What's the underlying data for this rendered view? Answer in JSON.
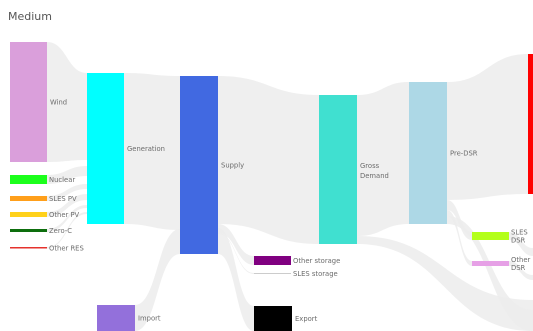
{
  "title": "Medium",
  "chart_data": {
    "type": "sankey",
    "title": "Medium",
    "nodes": [
      {
        "id": "wind",
        "label": "Wind",
        "color": "#da9fdb"
      },
      {
        "id": "nuclear",
        "label": "Nuclear",
        "color": "#1cff1c"
      },
      {
        "id": "sles_pv",
        "label": "SLES PV",
        "color": "#ff9f1a"
      },
      {
        "id": "other_pv",
        "label": "Other PV",
        "color": "#ffd11a"
      },
      {
        "id": "zero_c",
        "label": "Zero-C",
        "color": "#0d6e0d"
      },
      {
        "id": "other_res",
        "label": "Other RES",
        "color": "#e5322c"
      },
      {
        "id": "generation",
        "label": "Generation",
        "color": "#00ffff"
      },
      {
        "id": "import",
        "label": "Import",
        "color": "#9370db"
      },
      {
        "id": "supply",
        "label": "Supply",
        "color": "#4169e1"
      },
      {
        "id": "other_storage",
        "label": "Other storage",
        "color": "#800080"
      },
      {
        "id": "sles_storage",
        "label": "SLES storage",
        "color": "#cccccc"
      },
      {
        "id": "export",
        "label": "Export",
        "color": "#000000"
      },
      {
        "id": "gross_demand",
        "label": "Gross Demand",
        "color": "#40e0d0"
      },
      {
        "id": "pre_dsr",
        "label": "Pre-DSR",
        "color": "#add8e6"
      },
      {
        "id": "sles_dsr",
        "label": "SLES DSR",
        "color": "#b3ff1a"
      },
      {
        "id": "other_dsr",
        "label": "Other DSR",
        "color": "#e6a0e6"
      },
      {
        "id": "demand",
        "label": "",
        "color": "#ff0000"
      }
    ],
    "links": [
      {
        "source": "wind",
        "target": "generation"
      },
      {
        "source": "nuclear",
        "target": "generation"
      },
      {
        "source": "sles_pv",
        "target": "generation"
      },
      {
        "source": "other_pv",
        "target": "generation"
      },
      {
        "source": "zero_c",
        "target": "generation"
      },
      {
        "source": "other_res",
        "target": "generation"
      },
      {
        "source": "generation",
        "target": "supply"
      },
      {
        "source": "import",
        "target": "supply"
      },
      {
        "source": "supply",
        "target": "gross_demand"
      },
      {
        "source": "supply",
        "target": "other_storage"
      },
      {
        "source": "supply",
        "target": "sles_storage"
      },
      {
        "source": "supply",
        "target": "export"
      },
      {
        "source": "gross_demand",
        "target": "pre_dsr"
      },
      {
        "source": "pre_dsr",
        "target": "demand"
      },
      {
        "source": "pre_dsr",
        "target": "sles_dsr"
      },
      {
        "source": "pre_dsr",
        "target": "other_dsr"
      }
    ],
    "link_color": "#ececec"
  }
}
